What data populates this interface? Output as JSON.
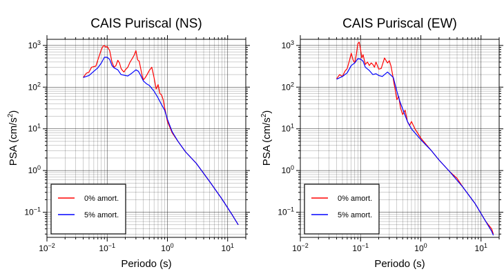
{
  "colors": {
    "series0": "#ff0000",
    "series1": "#0000ff",
    "grid": "#000000"
  },
  "chart_data": [
    {
      "type": "line",
      "title": "CAIS Puriscal (NS)",
      "xlabel": "Periodo (s)",
      "ylabel": "PSA (cm/s²)",
      "ylabel_base": "PSA (cm/s",
      "ylabel_sup": "2",
      "ylabel_end": ")",
      "xscale": "log",
      "yscale": "log",
      "xlim": [
        0.01,
        20
      ],
      "ylim": [
        0.025,
        1400
      ],
      "grid": true,
      "legend_position": "bottom-left",
      "x_ticks": [
        {
          "value": 0.01,
          "base": "10",
          "exp": "−2"
        },
        {
          "value": 0.1,
          "base": "10",
          "exp": "−1"
        },
        {
          "value": 1,
          "base": "10",
          "exp": "0"
        },
        {
          "value": 10,
          "base": "10",
          "exp": "1"
        }
      ],
      "y_ticks": [
        {
          "value": 0.1,
          "base": "10",
          "exp": "−1"
        },
        {
          "value": 1,
          "base": "10",
          "exp": "0"
        },
        {
          "value": 10,
          "base": "10",
          "exp": "1"
        },
        {
          "value": 100,
          "base": "10",
          "exp": "2"
        },
        {
          "value": 1000,
          "base": "10",
          "exp": "3"
        }
      ],
      "series": [
        {
          "name": "0% amort.",
          "color": "#ff0000",
          "points": [
            [
              0.04,
              170
            ],
            [
              0.045,
              215
            ],
            [
              0.05,
              230
            ],
            [
              0.055,
              300
            ],
            [
              0.06,
              310
            ],
            [
              0.065,
              320
            ],
            [
              0.07,
              450
            ],
            [
              0.075,
              600
            ],
            [
              0.08,
              800
            ],
            [
              0.085,
              950
            ],
            [
              0.09,
              1000
            ],
            [
              0.095,
              900
            ],
            [
              0.1,
              950
            ],
            [
              0.11,
              750
            ],
            [
              0.12,
              400
            ],
            [
              0.13,
              300
            ],
            [
              0.14,
              330
            ],
            [
              0.15,
              440
            ],
            [
              0.16,
              380
            ],
            [
              0.17,
              280
            ],
            [
              0.18,
              250
            ],
            [
              0.19,
              230
            ],
            [
              0.2,
              260
            ],
            [
              0.22,
              300
            ],
            [
              0.24,
              400
            ],
            [
              0.26,
              480
            ],
            [
              0.28,
              580
            ],
            [
              0.3,
              750
            ],
            [
              0.32,
              450
            ],
            [
              0.34,
              420
            ],
            [
              0.36,
              280
            ],
            [
              0.38,
              190
            ],
            [
              0.4,
              150
            ],
            [
              0.43,
              170
            ],
            [
              0.46,
              200
            ],
            [
              0.5,
              250
            ],
            [
              0.55,
              300
            ],
            [
              0.6,
              170
            ],
            [
              0.65,
              90
            ],
            [
              0.7,
              115
            ],
            [
              0.75,
              70
            ],
            [
              0.8,
              65
            ],
            [
              0.85,
              50
            ],
            [
              0.9,
              32
            ],
            [
              0.95,
              22
            ],
            [
              1.0,
              15
            ],
            [
              1.2,
              8
            ],
            [
              1.5,
              5
            ],
            [
              2,
              2.8
            ],
            [
              3,
              1.5
            ],
            [
              5,
              0.55
            ],
            [
              8,
              0.21
            ],
            [
              12,
              0.085
            ],
            [
              15,
              0.05
            ]
          ]
        },
        {
          "name": "5% amort.",
          "color": "#0000ff",
          "points": [
            [
              0.04,
              170
            ],
            [
              0.05,
              190
            ],
            [
              0.06,
              240
            ],
            [
              0.07,
              290
            ],
            [
              0.08,
              380
            ],
            [
              0.09,
              520
            ],
            [
              0.1,
              520
            ],
            [
              0.11,
              460
            ],
            [
              0.12,
              330
            ],
            [
              0.13,
              290
            ],
            [
              0.15,
              260
            ],
            [
              0.17,
              200
            ],
            [
              0.2,
              190
            ],
            [
              0.22,
              185
            ],
            [
              0.25,
              210
            ],
            [
              0.3,
              260
            ],
            [
              0.33,
              240
            ],
            [
              0.36,
              190
            ],
            [
              0.4,
              140
            ],
            [
              0.45,
              120
            ],
            [
              0.5,
              110
            ],
            [
              0.6,
              80
            ],
            [
              0.7,
              55
            ],
            [
              0.8,
              38
            ],
            [
              0.9,
              28
            ],
            [
              1.0,
              17
            ],
            [
              1.2,
              8.5
            ],
            [
              1.5,
              5
            ],
            [
              2,
              2.8
            ],
            [
              3,
              1.5
            ],
            [
              5,
              0.55
            ],
            [
              8,
              0.21
            ],
            [
              12,
              0.085
            ],
            [
              15,
              0.05
            ]
          ]
        }
      ]
    },
    {
      "type": "line",
      "title": "CAIS Puriscal (EW)",
      "xlabel": "Periodo (s)",
      "ylabel": "PSA (cm/s²)",
      "ylabel_base": "PSA (cm/s",
      "ylabel_sup": "2",
      "ylabel_end": ")",
      "xscale": "log",
      "yscale": "log",
      "xlim": [
        0.01,
        20
      ],
      "ylim": [
        0.025,
        1400
      ],
      "grid": true,
      "legend_position": "bottom-left",
      "x_ticks": [
        {
          "value": 0.01,
          "base": "10",
          "exp": "−2"
        },
        {
          "value": 0.1,
          "base": "10",
          "exp": "−1"
        },
        {
          "value": 1,
          "base": "10",
          "exp": "0"
        },
        {
          "value": 10,
          "base": "10",
          "exp": "1"
        }
      ],
      "y_ticks": [
        {
          "value": 0.1,
          "base": "10",
          "exp": "−1"
        },
        {
          "value": 1,
          "base": "10",
          "exp": "0"
        },
        {
          "value": 10,
          "base": "10",
          "exp": "1"
        },
        {
          "value": 100,
          "base": "10",
          "exp": "2"
        },
        {
          "value": 1000,
          "base": "10",
          "exp": "3"
        }
      ],
      "series": [
        {
          "name": "0% amort.",
          "color": "#ff0000",
          "points": [
            [
              0.04,
              160
            ],
            [
              0.045,
              200
            ],
            [
              0.05,
              180
            ],
            [
              0.055,
              240
            ],
            [
              0.06,
              280
            ],
            [
              0.065,
              420
            ],
            [
              0.07,
              650
            ],
            [
              0.075,
              450
            ],
            [
              0.08,
              380
            ],
            [
              0.085,
              600
            ],
            [
              0.09,
              1100
            ],
            [
              0.095,
              1200
            ],
            [
              0.1,
              800
            ],
            [
              0.105,
              500
            ],
            [
              0.11,
              600
            ],
            [
              0.12,
              350
            ],
            [
              0.13,
              400
            ],
            [
              0.14,
              330
            ],
            [
              0.15,
              380
            ],
            [
              0.16,
              350
            ],
            [
              0.17,
              300
            ],
            [
              0.18,
              400
            ],
            [
              0.19,
              330
            ],
            [
              0.2,
              270
            ],
            [
              0.22,
              280
            ],
            [
              0.25,
              500
            ],
            [
              0.28,
              380
            ],
            [
              0.3,
              430
            ],
            [
              0.32,
              320
            ],
            [
              0.34,
              200
            ],
            [
              0.36,
              120
            ],
            [
              0.38,
              80
            ],
            [
              0.4,
              50
            ],
            [
              0.43,
              60
            ],
            [
              0.46,
              32
            ],
            [
              0.5,
              22
            ],
            [
              0.55,
              28
            ],
            [
              0.6,
              15
            ],
            [
              0.65,
              12
            ],
            [
              0.7,
              15
            ],
            [
              0.8,
              10
            ],
            [
              1.0,
              6
            ],
            [
              1.5,
              3
            ],
            [
              2,
              1.8
            ],
            [
              3,
              0.95
            ],
            [
              4,
              0.65
            ],
            [
              5,
              0.4
            ],
            [
              8,
              0.16
            ],
            [
              12,
              0.06
            ],
            [
              15,
              0.04
            ],
            [
              16,
              0.03
            ]
          ]
        },
        {
          "name": "5% amort.",
          "color": "#0000ff",
          "points": [
            [
              0.04,
              155
            ],
            [
              0.05,
              180
            ],
            [
              0.06,
              220
            ],
            [
              0.07,
              330
            ],
            [
              0.08,
              380
            ],
            [
              0.09,
              480
            ],
            [
              0.1,
              470
            ],
            [
              0.11,
              420
            ],
            [
              0.12,
              300
            ],
            [
              0.14,
              250
            ],
            [
              0.16,
              200
            ],
            [
              0.18,
              210
            ],
            [
              0.2,
              190
            ],
            [
              0.23,
              180
            ],
            [
              0.25,
              200
            ],
            [
              0.28,
              230
            ],
            [
              0.3,
              210
            ],
            [
              0.35,
              170
            ],
            [
              0.4,
              80
            ],
            [
              0.45,
              45
            ],
            [
              0.5,
              30
            ],
            [
              0.6,
              15
            ],
            [
              0.7,
              10
            ],
            [
              0.8,
              8
            ],
            [
              1.0,
              5.5
            ],
            [
              1.5,
              3
            ],
            [
              2,
              1.8
            ],
            [
              3,
              0.95
            ],
            [
              5,
              0.4
            ],
            [
              8,
              0.16
            ],
            [
              12,
              0.06
            ],
            [
              15,
              0.035
            ],
            [
              16,
              0.028
            ]
          ]
        }
      ]
    }
  ]
}
